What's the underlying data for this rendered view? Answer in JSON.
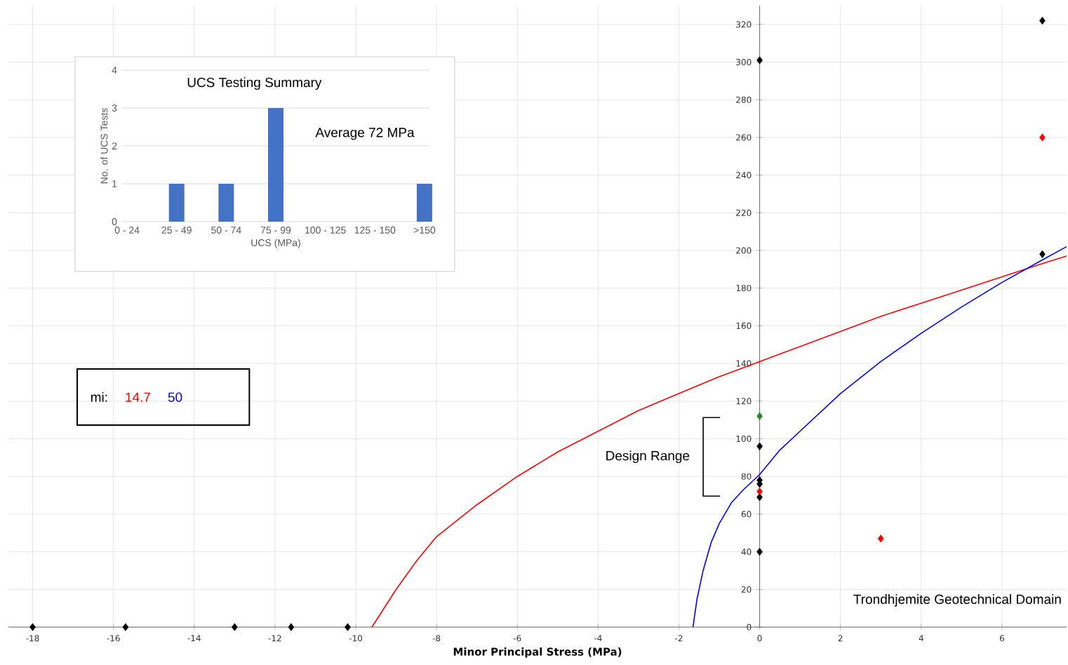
{
  "chart_data": [
    {
      "type": "scatter",
      "xlabel": "Minor Principal Stress (MPa)",
      "legend_title": "mi:",
      "legend": "left",
      "grid": true,
      "xlim": [
        -18.6,
        7.6
      ],
      "ylim": [
        0,
        330
      ],
      "xticks": [
        -18,
        -16,
        -14,
        -12,
        -10,
        -8,
        -6,
        -4,
        -2,
        0,
        2,
        4,
        6
      ],
      "yticks": [
        0,
        20,
        40,
        60,
        80,
        100,
        120,
        140,
        160,
        180,
        200,
        220,
        240,
        260,
        280,
        300,
        320
      ],
      "annotations": [
        "Design Range",
        "Trondhjemite Geotechnical Domain"
      ],
      "series": [
        {
          "type": "line",
          "name": "14.7",
          "color": "#ff0000",
          "x": [
            -9.6,
            -9.3,
            -9,
            -8.5,
            -8,
            -7,
            -6,
            -5,
            -4,
            -3,
            -2,
            -1,
            0,
            1,
            2,
            3,
            4,
            5,
            6,
            7,
            7.6
          ],
          "values": [
            0,
            10,
            20,
            35,
            48,
            65,
            80,
            93,
            104,
            115,
            124,
            133,
            141,
            149,
            157,
            165,
            172,
            179,
            186,
            193,
            197
          ]
        },
        {
          "type": "line",
          "name": "50",
          "color": "#0000ff",
          "x": [
            -1.65,
            -1.55,
            -1.4,
            -1.2,
            -1,
            -0.7,
            -0.4,
            0,
            0.5,
            1,
            2,
            3,
            4,
            5,
            6,
            7,
            7.6
          ],
          "values": [
            0,
            15,
            30,
            45,
            55,
            66,
            73,
            81,
            94,
            104,
            124,
            141,
            156,
            170,
            183,
            195,
            202
          ]
        },
        {
          "marker": "diamond",
          "color": "#000000",
          "x": [
            -18,
            -15.7,
            -13,
            -11.6,
            -10.2,
            0,
            0,
            0,
            0,
            0,
            0,
            7,
            7
          ],
          "values": [
            0,
            0,
            0,
            0,
            0,
            301,
            96,
            78,
            76,
            69,
            40,
            322,
            198
          ]
        },
        {
          "marker": "diamond",
          "color": "#ff0000",
          "x": [
            0,
            3,
            7
          ],
          "values": [
            72,
            47,
            260
          ]
        },
        {
          "marker": "diamond",
          "color": "#228b22",
          "x": [
            0
          ],
          "values": [
            112
          ]
        }
      ]
    },
    {
      "type": "bar",
      "title": "UCS Testing Summary",
      "xlabel": "UCS (MPa)",
      "ylabel": "No. of UCS Tests",
      "grid": "y",
      "color": "#4472c4",
      "categories": [
        "0 - 24",
        "25 - 49",
        "50 - 74",
        "75 - 99",
        "100 - 125",
        "125 - 150",
        ">150"
      ],
      "values": [
        0,
        1,
        1,
        3,
        0,
        0,
        1
      ],
      "ylim": [
        0,
        4
      ],
      "yticks": [
        0,
        1,
        2,
        3,
        4
      ],
      "annotations": [
        "Average 72 MPa"
      ]
    }
  ]
}
